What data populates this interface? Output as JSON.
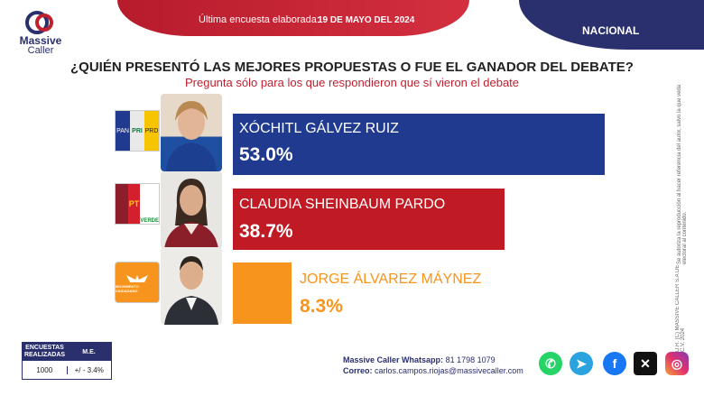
{
  "header": {
    "survey_label": "Última encuesta elaborada:",
    "survey_date": "19 DE MAYO DEL 2024",
    "scope": "NACIONAL"
  },
  "logo": {
    "line1": "Massive",
    "line2": "Caller"
  },
  "question": "¿QUIÉN PRESENTÓ LAS MEJORES PROPUESTAS O FUE EL GANADOR DEL DEBATE?",
  "question_note": "Pregunta sólo para los que respondieron que sí vieron el debate",
  "chart_data": {
    "type": "bar",
    "orientation": "horizontal",
    "categories": [
      "XÓCHITL GÁLVEZ RUIZ",
      "CLAUDIA SHEINBAUM PARDO",
      "JORGE ÁLVAREZ MÁYNEZ"
    ],
    "values": [
      53.0,
      38.7,
      8.3
    ],
    "value_labels": [
      "53.0%",
      "38.7%",
      "8.3%"
    ],
    "colors": [
      "#1f3a8f",
      "#c01a24",
      "#f7941d"
    ],
    "name_colors": [
      "#ffffff",
      "#ffffff",
      "#f7941d"
    ],
    "party_labels": [
      [
        "PAN",
        "PRI",
        "PRD"
      ],
      [
        "PT",
        "VERDE"
      ],
      [
        "MOVIMIENTO CIUDADANO"
      ]
    ]
  },
  "side_note": {
    "line1": "D.R. (C) MASSIVE CALLER S.A DE C.V. 2024",
    "line2": "Se autoriza la reproducción al hacer referencia del autor, salvo la que veda electoral al contenido."
  },
  "me_table": {
    "col1": "ENCUESTAS REALIZADAS",
    "col2": "M.E.",
    "val1": "1000",
    "val2": "+/ - 3.4%"
  },
  "contact": {
    "whatsapp_label": "Massive Caller Whatsapp:",
    "whatsapp": "81 1798 1079",
    "email_label": "Correo:",
    "email": "carlos.campos.riojas@massivecaller.com"
  },
  "social": [
    "whatsapp-icon",
    "telegram-icon",
    "facebook-icon",
    "x-icon",
    "instagram-icon"
  ]
}
